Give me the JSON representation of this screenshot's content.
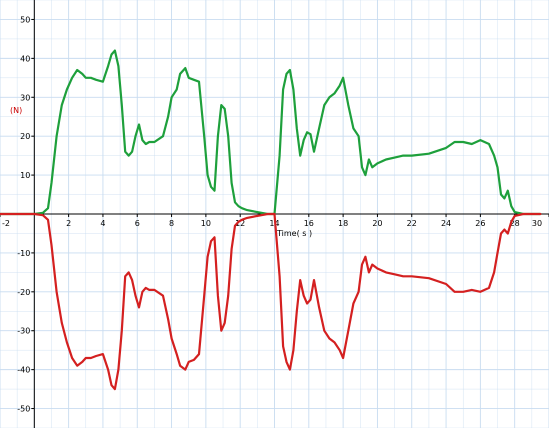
{
  "chart_data": {
    "type": "line",
    "xlabel": "Time( s )",
    "ylabel": "(N)",
    "xlim": [
      -2,
      30
    ],
    "ylim": [
      -55,
      55
    ],
    "grid": true,
    "x_ticks": [
      -2,
      2,
      4,
      6,
      8,
      10,
      12,
      14,
      16,
      18,
      20,
      22,
      24,
      26,
      28,
      30
    ],
    "y_ticks": [
      50,
      40,
      30,
      20,
      10,
      -10,
      -20,
      -30,
      -40,
      -50
    ],
    "colors": {
      "grid": "#c8dcf0",
      "axis": "#000000",
      "ylabel": "#cc0000",
      "series_1": "#1ea03c",
      "series_2": "#d42020"
    },
    "series": [
      {
        "x": [
          -2,
          0,
          0.5,
          0.8,
          1.0,
          1.3,
          1.6,
          1.9,
          2.2,
          2.5,
          2.8,
          3.0,
          3.3,
          3.6,
          4.0,
          4.3,
          4.5,
          4.7,
          4.9,
          5.1,
          5.3,
          5.5,
          5.7,
          5.9,
          6.1,
          6.3,
          6.5,
          6.7,
          7.0,
          7.5,
          7.8,
          8.0,
          8.3,
          8.5,
          8.8,
          9.0,
          9.3,
          9.6,
          9.9,
          10.1,
          10.3,
          10.5,
          10.7,
          10.9,
          11.1,
          11.3,
          11.5,
          11.7,
          11.9,
          12.1,
          12.4,
          13.0,
          13.6,
          14.0,
          14.3,
          14.5,
          14.7,
          14.9,
          15.1,
          15.3,
          15.5,
          15.7,
          15.9,
          16.1,
          16.3,
          16.6,
          16.9,
          17.2,
          17.5,
          17.8,
          18.0,
          18.3,
          18.6,
          18.9,
          19.1,
          19.3,
          19.5,
          19.7,
          20.0,
          20.5,
          21.0,
          21.5,
          22.0,
          23.0,
          24.0,
          24.5,
          25.0,
          25.5,
          26.0,
          26.5,
          26.8,
          27.0,
          27.2,
          27.4,
          27.6,
          27.8,
          28.0,
          28.5,
          29.5
        ],
        "values": [
          0,
          0,
          0.3,
          1.5,
          8,
          20,
          28,
          32,
          35,
          37,
          36,
          35,
          35,
          34.5,
          34,
          38,
          41,
          42,
          38,
          28,
          16,
          15,
          16,
          20,
          23,
          19,
          18,
          18.5,
          18.5,
          20,
          25,
          30,
          32,
          36,
          37.5,
          35,
          34.5,
          34,
          20,
          10,
          7,
          6,
          20,
          28,
          27,
          20,
          8,
          3,
          2,
          1.5,
          1,
          0.5,
          0,
          0,
          15,
          32,
          36,
          37,
          32,
          22,
          15,
          19,
          21,
          20.5,
          16,
          22,
          28,
          30,
          31,
          33,
          35,
          28,
          22,
          20,
          12,
          10,
          14,
          12,
          13,
          14,
          14.5,
          15,
          15,
          15.5,
          17,
          18.5,
          18.5,
          18,
          19,
          18,
          15,
          12,
          5,
          4,
          6,
          2,
          0.5,
          0,
          0
        ]
      },
      {
        "x": [
          -2,
          0,
          0.5,
          0.8,
          1.0,
          1.3,
          1.6,
          1.9,
          2.2,
          2.5,
          2.8,
          3.0,
          3.3,
          3.6,
          4.0,
          4.3,
          4.5,
          4.7,
          4.9,
          5.1,
          5.3,
          5.5,
          5.7,
          5.9,
          6.1,
          6.3,
          6.5,
          6.7,
          7.0,
          7.5,
          7.8,
          8.0,
          8.3,
          8.5,
          8.8,
          9.0,
          9.3,
          9.6,
          9.9,
          10.1,
          10.3,
          10.5,
          10.7,
          10.9,
          11.1,
          11.3,
          11.5,
          11.7,
          11.9,
          12.1,
          12.4,
          13.0,
          13.6,
          14.0,
          14.3,
          14.5,
          14.7,
          14.9,
          15.1,
          15.3,
          15.5,
          15.7,
          15.9,
          16.1,
          16.3,
          16.6,
          16.9,
          17.2,
          17.5,
          17.8,
          18.0,
          18.3,
          18.6,
          18.9,
          19.1,
          19.3,
          19.5,
          19.7,
          20.0,
          20.5,
          21.0,
          21.5,
          22.0,
          23.0,
          24.0,
          24.5,
          25.0,
          25.5,
          26.0,
          26.5,
          26.8,
          27.0,
          27.2,
          27.4,
          27.6,
          27.8,
          28.0,
          28.5,
          29.5
        ],
        "values": [
          0,
          0,
          -0.3,
          -1.5,
          -8,
          -20,
          -28,
          -33,
          -37,
          -39,
          -38,
          -37,
          -37,
          -36.5,
          -36,
          -40,
          -44,
          -45,
          -40,
          -30,
          -16,
          -15,
          -17,
          -21,
          -24,
          -20,
          -19,
          -19.5,
          -19.5,
          -21,
          -27,
          -32,
          -36,
          -39,
          -40,
          -38,
          -37.5,
          -36,
          -21,
          -11,
          -7,
          -6,
          -21,
          -30,
          -28,
          -21,
          -9,
          -3,
          -2,
          -1.5,
          -1,
          -0.5,
          0,
          0,
          -16,
          -34,
          -38,
          -40,
          -35,
          -25,
          -17,
          -21,
          -23,
          -22,
          -17,
          -24,
          -30,
          -32,
          -33,
          -35,
          -37,
          -30,
          -23,
          -20,
          -13,
          -11,
          -15,
          -13,
          -14,
          -15,
          -15.5,
          -16,
          -16,
          -16.5,
          -18,
          -20,
          -20,
          -19.5,
          -20,
          -19,
          -15,
          -10,
          -5,
          -4,
          -5,
          -2,
          -0.5,
          0,
          0
        ]
      }
    ]
  }
}
